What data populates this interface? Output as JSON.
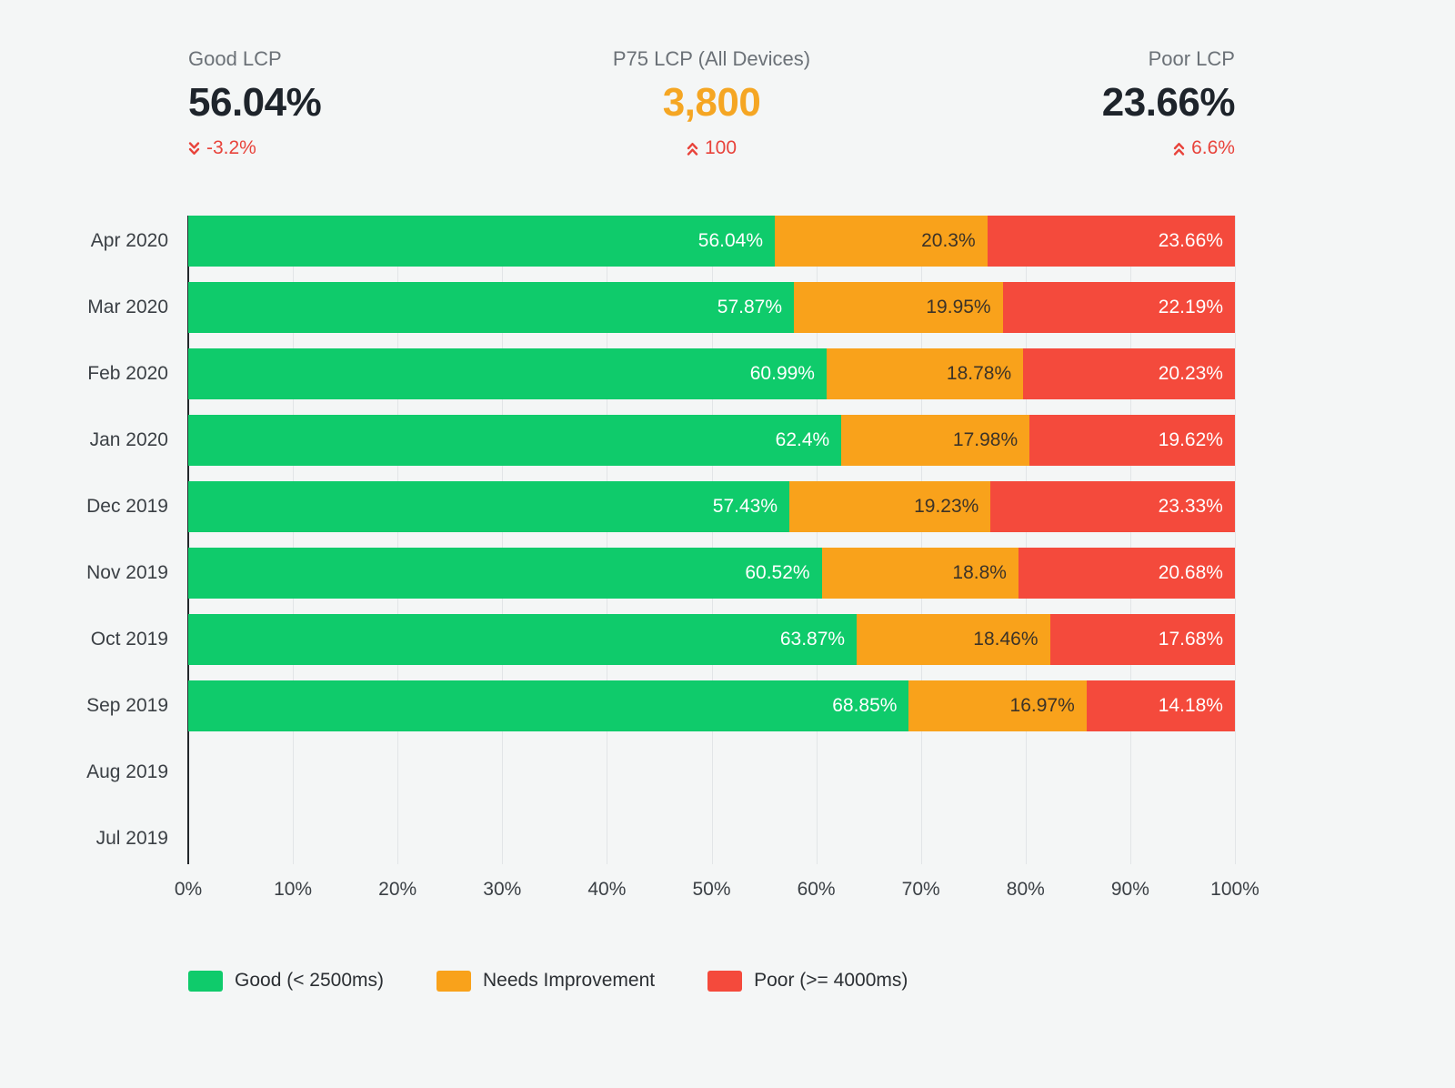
{
  "kpis": [
    {
      "label": "Good LCP",
      "value": "56.04%",
      "value_color": "#1e242b",
      "change": "-3.2%",
      "direction": "down",
      "change_color": "#e8433b"
    },
    {
      "label": "P75 LCP (All Devices)",
      "value": "3,800",
      "value_color": "#f5a623",
      "change": "100",
      "direction": "up",
      "change_color": "#e8433b"
    },
    {
      "label": "Poor LCP",
      "value": "23.66%",
      "value_color": "#1e242b",
      "change": "6.6%",
      "direction": "up",
      "change_color": "#e8433b"
    }
  ],
  "chart_data": {
    "type": "bar",
    "stacked": true,
    "orientation": "horizontal",
    "title": "",
    "xlabel": "",
    "ylabel": "",
    "xlim": [
      0,
      100
    ],
    "grid": true,
    "legend_position": "bottom",
    "categories": [
      "Apr 2020",
      "Mar 2020",
      "Feb 2020",
      "Jan 2020",
      "Dec 2019",
      "Nov 2019",
      "Oct 2019",
      "Sep 2019",
      "Aug 2019",
      "Jul 2019"
    ],
    "x_ticks": [
      "0%",
      "10%",
      "20%",
      "30%",
      "40%",
      "50%",
      "60%",
      "70%",
      "80%",
      "90%",
      "100%"
    ],
    "series": [
      {
        "key": "good",
        "name": "Good (< 2500ms)",
        "color": "#0fcb6b",
        "label_color": "#ffffff",
        "values": [
          56.04,
          57.87,
          60.99,
          62.4,
          57.43,
          60.52,
          63.87,
          68.85,
          null,
          null
        ]
      },
      {
        "key": "needs-improvement",
        "name": "Needs Improvement",
        "color": "#f9a21b",
        "label_color": "#3c3328",
        "values": [
          20.3,
          19.95,
          18.78,
          17.98,
          19.23,
          18.8,
          18.46,
          16.97,
          null,
          null
        ]
      },
      {
        "key": "poor",
        "name": "Poor (>= 4000ms)",
        "color": "#f44a3c",
        "label_color": "#ffffff",
        "values": [
          23.66,
          22.19,
          20.23,
          19.62,
          23.33,
          20.68,
          17.68,
          14.18,
          null,
          null
        ]
      }
    ]
  }
}
